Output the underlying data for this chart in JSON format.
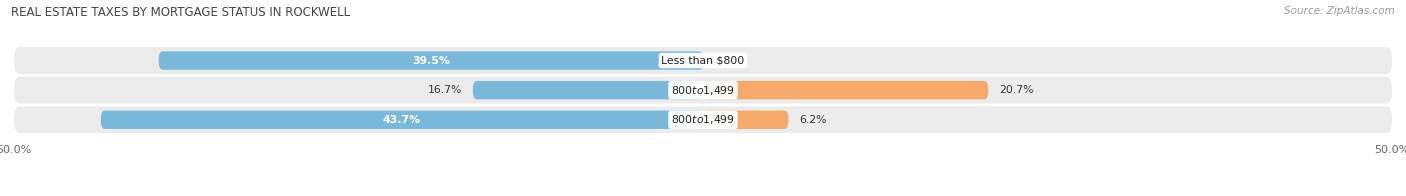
{
  "title": "REAL ESTATE TAXES BY MORTGAGE STATUS IN ROCKWELL",
  "source": "Source: ZipAtlas.com",
  "rows": [
    {
      "label": "Less than $800",
      "without_mortgage": 39.5,
      "with_mortgage": 0.0
    },
    {
      "label": "$800 to $1,499",
      "without_mortgage": 16.7,
      "with_mortgage": 20.7
    },
    {
      "label": "$800 to $1,499",
      "without_mortgage": 43.7,
      "with_mortgage": 6.2
    }
  ],
  "axis_min": -50.0,
  "axis_max": 50.0,
  "axis_tick_labels_left": "50.0%",
  "axis_tick_labels_right": "50.0%",
  "color_without": "#7ab8d9",
  "color_with": "#f5a96b",
  "color_without_light": "#b8d8ec",
  "bar_height": 0.62,
  "background_row": "#ebebeb",
  "background_fig": "#ffffff",
  "title_fontsize": 8.5,
  "source_fontsize": 7.5,
  "label_fontsize": 7.8,
  "value_fontsize": 7.8,
  "legend_fontsize": 8.0,
  "tick_fontsize": 8.0
}
